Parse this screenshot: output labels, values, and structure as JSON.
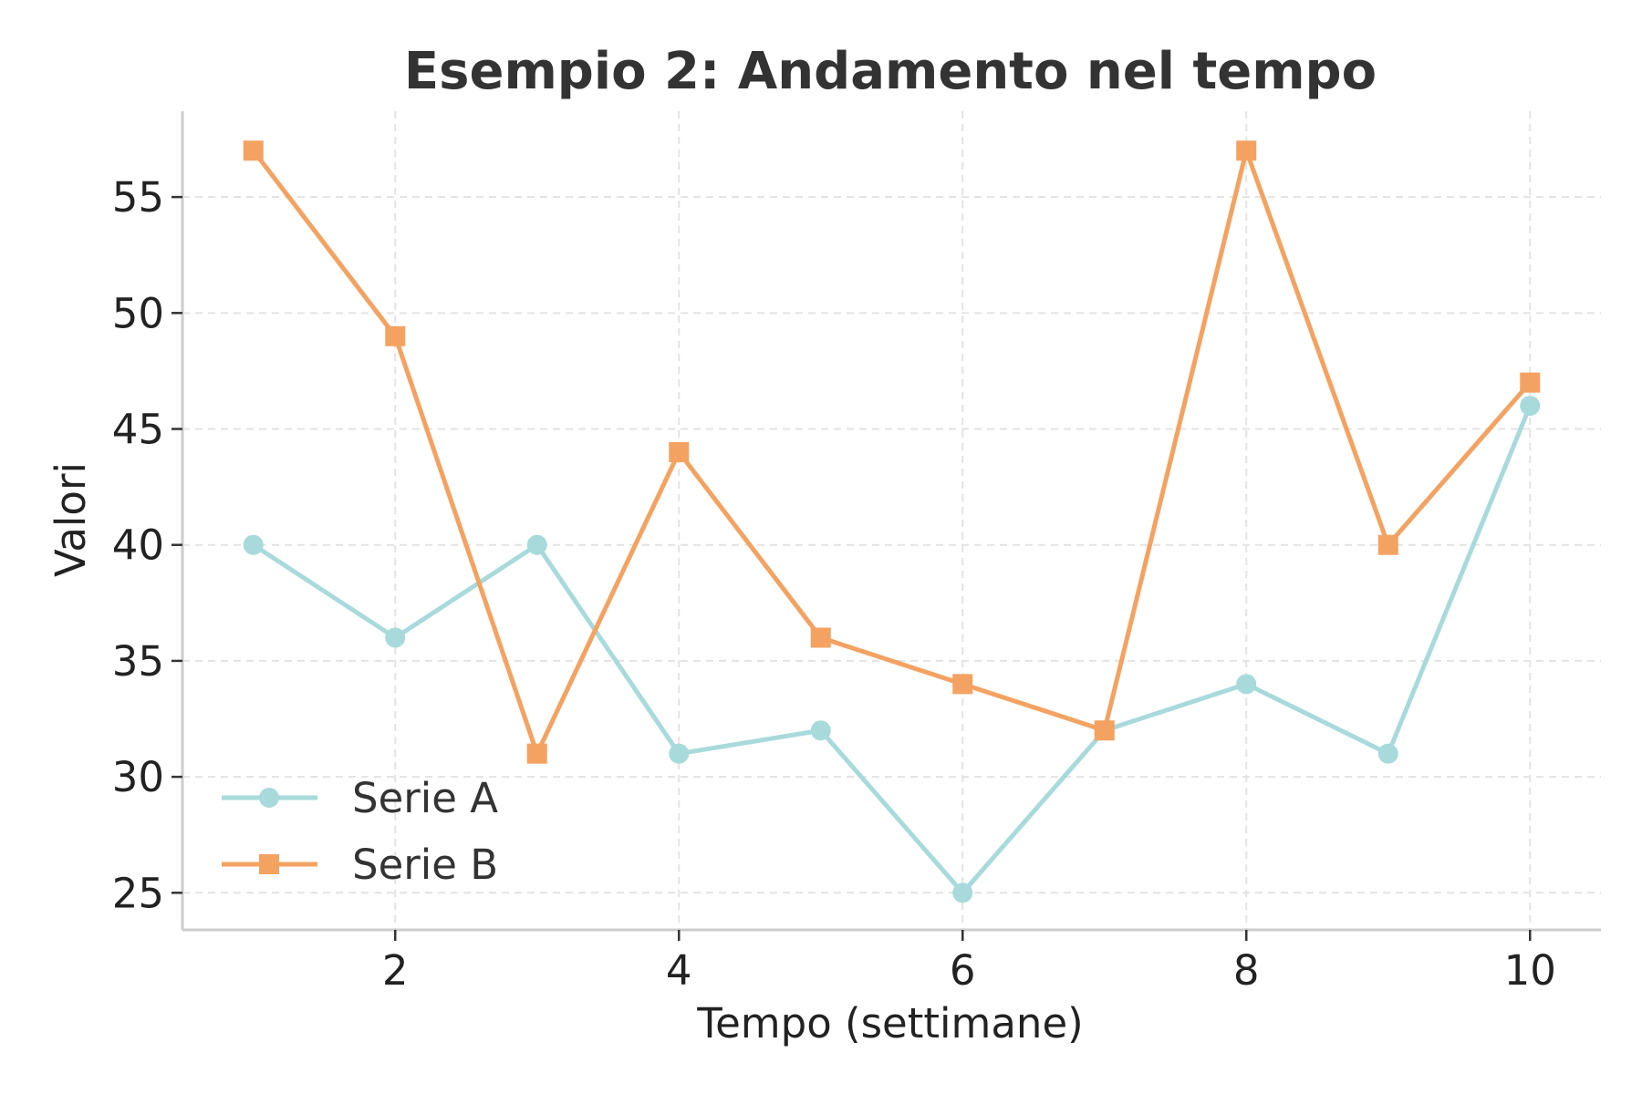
{
  "chart_data": {
    "type": "line",
    "title": "Esempio 2: Andamento nel tempo",
    "xlabel": "Tempo (settimane)",
    "ylabel": "Valori",
    "x": [
      1,
      2,
      3,
      4,
      5,
      6,
      7,
      8,
      9,
      10
    ],
    "xticks": [
      2,
      4,
      6,
      8,
      10
    ],
    "yticks": [
      25,
      30,
      35,
      40,
      45,
      50,
      55
    ],
    "xlim": [
      0.5,
      10.5
    ],
    "ylim": [
      23.4,
      58.7
    ],
    "grid": true,
    "legend_position": "lower-left",
    "series": [
      {
        "name": "Serie A",
        "marker": "circle",
        "color": "#a8dadc",
        "values": [
          40,
          36,
          40,
          31,
          32,
          25,
          32,
          34,
          31,
          46
        ]
      },
      {
        "name": "Serie B",
        "marker": "square",
        "color": "#f4a261",
        "values": [
          57,
          49,
          31,
          44,
          36,
          34,
          32,
          57,
          40,
          47
        ]
      }
    ]
  }
}
